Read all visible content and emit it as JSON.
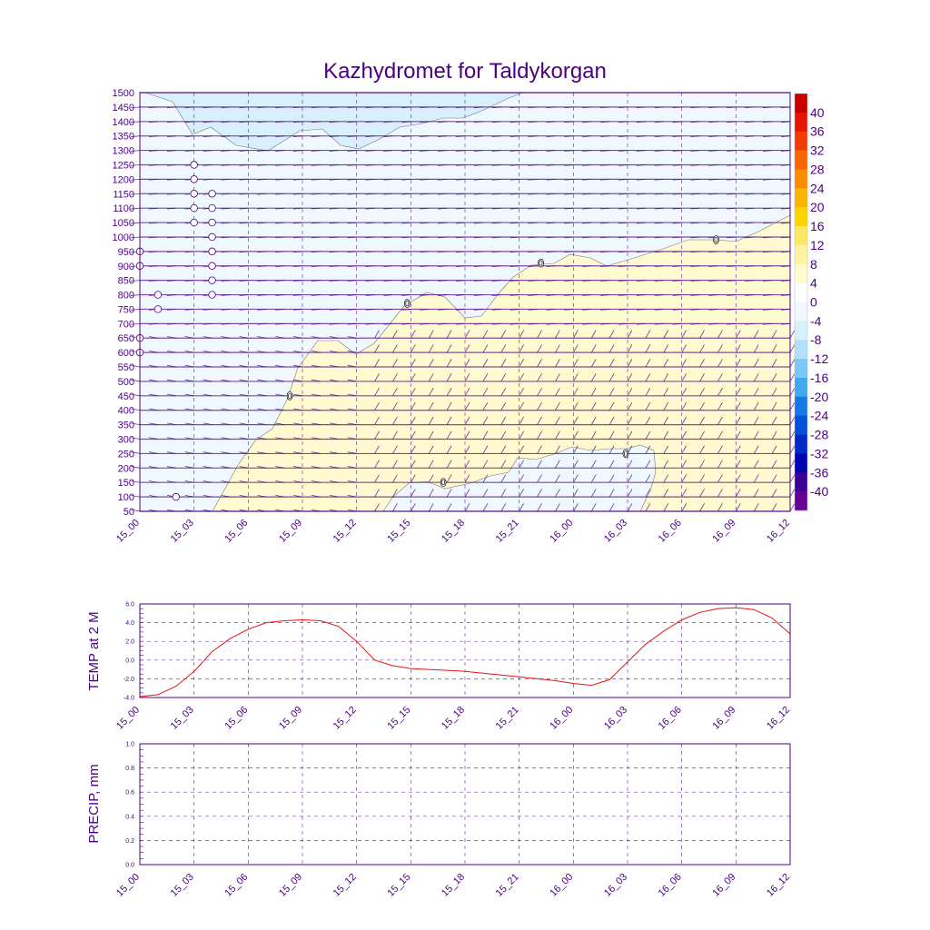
{
  "chart_data": [
    {
      "type": "heatmap",
      "title": "Kazhydromet for Taldykorgan",
      "time_labels": [
        "15_00",
        "15_03",
        "15_06",
        "15_09",
        "15_12",
        "15_15",
        "15_18",
        "15_21",
        "16_00",
        "16_03",
        "16_06",
        "16_09",
        "16_12"
      ],
      "y_levels": [
        1500,
        1450,
        1400,
        1350,
        1300,
        1250,
        1200,
        1150,
        1100,
        1050,
        1000,
        950,
        900,
        850,
        800,
        750,
        700,
        650,
        600,
        550,
        500,
        450,
        400,
        350,
        300,
        250,
        200,
        150,
        100,
        50
      ],
      "ylim": [
        50,
        1500
      ],
      "zero_contour_labels": [
        {
          "label": "0",
          "hour": 8.3,
          "level": 450
        },
        {
          "label": "0",
          "hour": 14.8,
          "level": 770
        },
        {
          "label": "0",
          "hour": 16.8,
          "level": 150
        },
        {
          "label": "0",
          "hour": 22.2,
          "level": 910
        },
        {
          "label": "0",
          "hour": 26.9,
          "level": 250
        },
        {
          "label": "0",
          "hour": 31.9,
          "level": 990
        }
      ],
      "calm_markers": [
        {
          "hour": 3,
          "level": 1250
        },
        {
          "hour": 3,
          "level": 1200
        },
        {
          "hour": 3,
          "level": 1150
        },
        {
          "hour": 3,
          "level": 1100
        },
        {
          "hour": 3,
          "level": 1050
        },
        {
          "hour": 4,
          "level": 1150
        },
        {
          "hour": 4,
          "level": 1100
        },
        {
          "hour": 4,
          "level": 1050
        },
        {
          "hour": 4,
          "level": 1000
        },
        {
          "hour": 4,
          "level": 950
        },
        {
          "hour": 4,
          "level": 900
        },
        {
          "hour": 4,
          "level": 850
        },
        {
          "hour": 4,
          "level": 800
        },
        {
          "hour": 0,
          "level": 950
        },
        {
          "hour": 0,
          "level": 900
        },
        {
          "hour": 0,
          "level": 650
        },
        {
          "hour": 0,
          "level": 600
        },
        {
          "hour": 1,
          "level": 800
        },
        {
          "hour": 1,
          "level": 750
        },
        {
          "hour": 2,
          "level": 100
        }
      ],
      "colorbar": {
        "labels": [
          "40",
          "36",
          "32",
          "28",
          "24",
          "20",
          "16",
          "12",
          "8",
          "4",
          "0",
          "-4",
          "-8",
          "-12",
          "-16",
          "-20",
          "-24",
          "-28",
          "-32",
          "-36",
          "-40"
        ],
        "colors": [
          "#c80000",
          "#e41400",
          "#f03c00",
          "#f86400",
          "#fc8c00",
          "#fcb400",
          "#fcd400",
          "#fce864",
          "#fcf4a0",
          "#fffad0",
          "#ffffff",
          "#f0f8ff",
          "#d8f0fc",
          "#b0e0fa",
          "#78c8f8",
          "#40a8f0",
          "#1478e6",
          "#0050dc",
          "#0028c8",
          "#0000b4",
          "#3c0096",
          "#640096"
        ]
      }
    },
    {
      "type": "line",
      "ylabel": "TEMP at 2 M",
      "yticks": [
        "6.0",
        "4.0",
        "2.0",
        "0.0",
        "-2.0",
        "-4.0"
      ],
      "ylim": [
        -4,
        6
      ],
      "xtick_labels": [
        "15_00",
        "15_03",
        "15_06",
        "15_09",
        "15_12",
        "15_15",
        "15_18",
        "15_21",
        "16_00",
        "16_03",
        "16_06",
        "16_09",
        "16_12"
      ],
      "series": [
        {
          "name": "TEMP at 2 M",
          "color": "#e41414",
          "x": [
            0,
            1,
            2,
            3,
            4,
            5,
            6,
            7,
            8,
            9,
            10,
            11,
            12,
            13,
            14,
            15,
            16,
            17,
            18,
            19,
            20,
            21,
            22,
            23,
            24,
            25,
            26,
            27,
            28,
            29,
            30,
            31,
            32,
            33,
            34,
            35,
            36
          ],
          "values": [
            -3.9,
            -3.7,
            -2.8,
            -1.2,
            0.9,
            2.3,
            3.3,
            4.0,
            4.2,
            4.3,
            4.2,
            3.6,
            2.0,
            0.0,
            -0.6,
            -0.9,
            -1.0,
            -1.1,
            -1.2,
            -1.4,
            -1.6,
            -1.8,
            -2.0,
            -2.2,
            -2.5,
            -2.7,
            -2.1,
            -0.2,
            1.7,
            3.1,
            4.3,
            5.1,
            5.5,
            5.6,
            5.4,
            4.5,
            2.8
          ]
        }
      ]
    },
    {
      "type": "line",
      "ylabel": "PRECIP, mm",
      "yticks": [
        "1.0",
        "0.8",
        "0.6",
        "0.4",
        "0.2",
        "0.0"
      ],
      "ylim": [
        0,
        1
      ],
      "xtick_labels": [
        "15_00",
        "15_03",
        "15_06",
        "15_09",
        "15_12",
        "15_15",
        "15_18",
        "15_21",
        "16_00",
        "16_03",
        "16_06",
        "16_09",
        "16_12"
      ],
      "series": [
        {
          "name": "PRECIP, mm",
          "color": "#e41414",
          "x": [
            0,
            3,
            6,
            9,
            12,
            15,
            18,
            21,
            24,
            27,
            30,
            33,
            36
          ],
          "values": [
            0,
            0,
            0,
            0,
            0,
            0,
            0,
            0,
            0,
            0,
            0,
            0,
            0
          ]
        }
      ]
    }
  ]
}
